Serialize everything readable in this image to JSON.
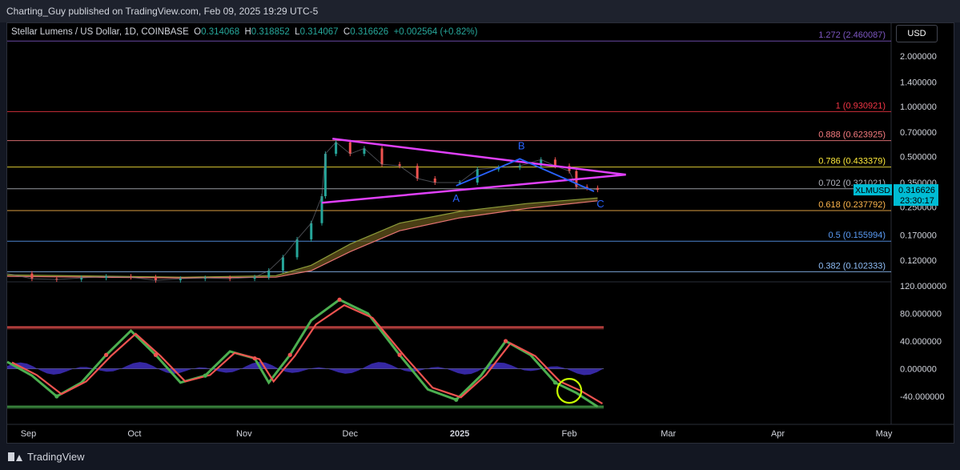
{
  "header": {
    "publish_line": "Charting_Guy published on TradingView.com, Feb 09, 2025 19:29 UTC-5"
  },
  "ohlc": {
    "symbol": "Stellar Lumens / US Dollar, 1D, COINBASE",
    "o_label": "O",
    "o": "0.314068",
    "h_label": "H",
    "h": "0.318852",
    "l_label": "L",
    "l": "0.314067",
    "c_label": "C",
    "c": "0.316626",
    "change": "+0.002564 (+0.82%)"
  },
  "currency_button": "USD",
  "price_tag": {
    "ticker": "XLMUSD",
    "price": "0.316626",
    "countdown": "23:30:17"
  },
  "wave_labels": {
    "a": "A",
    "b": "B",
    "c": "C"
  },
  "footer": {
    "brand": "TradingView"
  },
  "colors": {
    "background": "#000000",
    "triangle": "#e040fb",
    "wave": "#2962ff",
    "ema_band": "#6b5a1e",
    "osc_green": "#4caf50",
    "osc_red": "#ef5350",
    "money_flow": "#3f2fbf",
    "circle": "#c6ff00"
  },
  "chart_data": [
    {
      "type": "line",
      "title": "Stellar Lumens / US Dollar, 1D, COINBASE",
      "y_scale": "log",
      "y_ticks": [
        "2.000000",
        "1.400000",
        "1.000000",
        "0.700000",
        "0.500000",
        "0.350000",
        "0.250000",
        "0.170000",
        "0.120000"
      ],
      "y_tick_values": [
        2.0,
        1.4,
        1.0,
        0.7,
        0.5,
        0.35,
        0.25,
        0.17,
        0.12
      ],
      "x_ticks": [
        "Sep",
        "Oct",
        "Nov",
        "Dec",
        "2025",
        "Feb",
        "Mar",
        "Apr",
        "May"
      ],
      "fib_levels": [
        {
          "ratio": "1.272",
          "label": "1.272 (2.460087)",
          "value": 2.460087,
          "color": "#7e57c2"
        },
        {
          "ratio": "1",
          "label": "1 (0.930921)",
          "value": 0.930921,
          "color": "#f23645"
        },
        {
          "ratio": "0.888",
          "label": "0.888 (0.623925)",
          "value": 0.623925,
          "color": "#f77c80"
        },
        {
          "ratio": "0.786",
          "label": "0.786 (0.433379)",
          "value": 0.433379,
          "color": "#ffeb3b"
        },
        {
          "ratio": "0.702",
          "label": "0.702 (0.321021)",
          "value": 0.321021,
          "color": "#b2b5be"
        },
        {
          "ratio": "0.618",
          "label": "0.618 (0.237792)",
          "value": 0.237792,
          "color": "#ffb74d"
        },
        {
          "ratio": "0.5",
          "label": "0.5 (0.155994)",
          "value": 0.155994,
          "color": "#5b9cf6"
        },
        {
          "ratio": "0.382",
          "label": "0.382 (0.102333)",
          "value": 0.102333,
          "color": "#90bff9"
        }
      ],
      "close_series": [
        [
          "2024-08-26",
          0.1
        ],
        [
          "2024-09-02",
          0.093
        ],
        [
          "2024-09-09",
          0.092
        ],
        [
          "2024-09-16",
          0.094
        ],
        [
          "2024-09-23",
          0.096
        ],
        [
          "2024-09-30",
          0.095
        ],
        [
          "2024-10-07",
          0.091
        ],
        [
          "2024-10-14",
          0.093
        ],
        [
          "2024-10-21",
          0.094
        ],
        [
          "2024-10-28",
          0.093
        ],
        [
          "2024-11-04",
          0.095
        ],
        [
          "2024-11-08",
          0.104
        ],
        [
          "2024-11-12",
          0.125
        ],
        [
          "2024-11-16",
          0.16
        ],
        [
          "2024-11-20",
          0.2
        ],
        [
          "2024-11-23",
          0.29
        ],
        [
          "2024-11-24",
          0.52
        ],
        [
          "2024-11-27",
          0.61
        ],
        [
          "2024-12-01",
          0.52
        ],
        [
          "2024-12-05",
          0.56
        ],
        [
          "2024-12-10",
          0.45
        ],
        [
          "2024-12-15",
          0.44
        ],
        [
          "2024-12-20",
          0.37
        ],
        [
          "2024-12-25",
          0.35
        ],
        [
          "2025-01-01",
          0.35
        ],
        [
          "2025-01-06",
          0.42
        ],
        [
          "2025-01-12",
          0.43
        ],
        [
          "2025-01-18",
          0.44
        ],
        [
          "2025-01-24",
          0.48
        ],
        [
          "2025-01-28",
          0.44
        ],
        [
          "2025-02-01",
          0.41
        ],
        [
          "2025-02-03",
          0.33
        ],
        [
          "2025-02-06",
          0.325
        ],
        [
          "2025-02-09",
          0.316626
        ]
      ],
      "triangle": {
        "upper": [
          [
            "2024-11-26",
            0.64
          ],
          [
            "2025-02-17",
            0.39
          ]
        ],
        "lower": [
          [
            "2024-11-23",
            0.265
          ],
          [
            "2025-02-17",
            0.39
          ]
        ]
      },
      "wave": [
        [
          "2024-12-31",
          0.335
        ],
        [
          "2025-01-18",
          0.485
        ],
        [
          "2025-02-08",
          0.31
        ]
      ]
    },
    {
      "type": "line",
      "title": "",
      "y_ticks": [
        "120.000000",
        "80.000000",
        "40.000000",
        "0.000000",
        "-40.000000"
      ],
      "y_tick_values": [
        120,
        80,
        40,
        0,
        -40
      ],
      "bands": [
        60,
        -55
      ],
      "oscillator": [
        [
          "2024-08-26",
          10
        ],
        [
          "2024-09-02",
          -10
        ],
        [
          "2024-09-09",
          -40
        ],
        [
          "2024-09-16",
          -20
        ],
        [
          "2024-09-23",
          20
        ],
        [
          "2024-09-30",
          55
        ],
        [
          "2024-10-07",
          20
        ],
        [
          "2024-10-14",
          -20
        ],
        [
          "2024-10-21",
          -10
        ],
        [
          "2024-10-28",
          25
        ],
        [
          "2024-11-04",
          15
        ],
        [
          "2024-11-08",
          -20
        ],
        [
          "2024-11-14",
          20
        ],
        [
          "2024-11-20",
          70
        ],
        [
          "2024-11-28",
          100
        ],
        [
          "2024-12-06",
          80
        ],
        [
          "2024-12-15",
          20
        ],
        [
          "2024-12-23",
          -30
        ],
        [
          "2024-12-31",
          -45
        ],
        [
          "2025-01-07",
          -10
        ],
        [
          "2025-01-14",
          40
        ],
        [
          "2025-01-21",
          20
        ],
        [
          "2025-01-28",
          -20
        ],
        [
          "2025-02-03",
          -35
        ],
        [
          "2025-02-09",
          -55
        ]
      ]
    }
  ]
}
